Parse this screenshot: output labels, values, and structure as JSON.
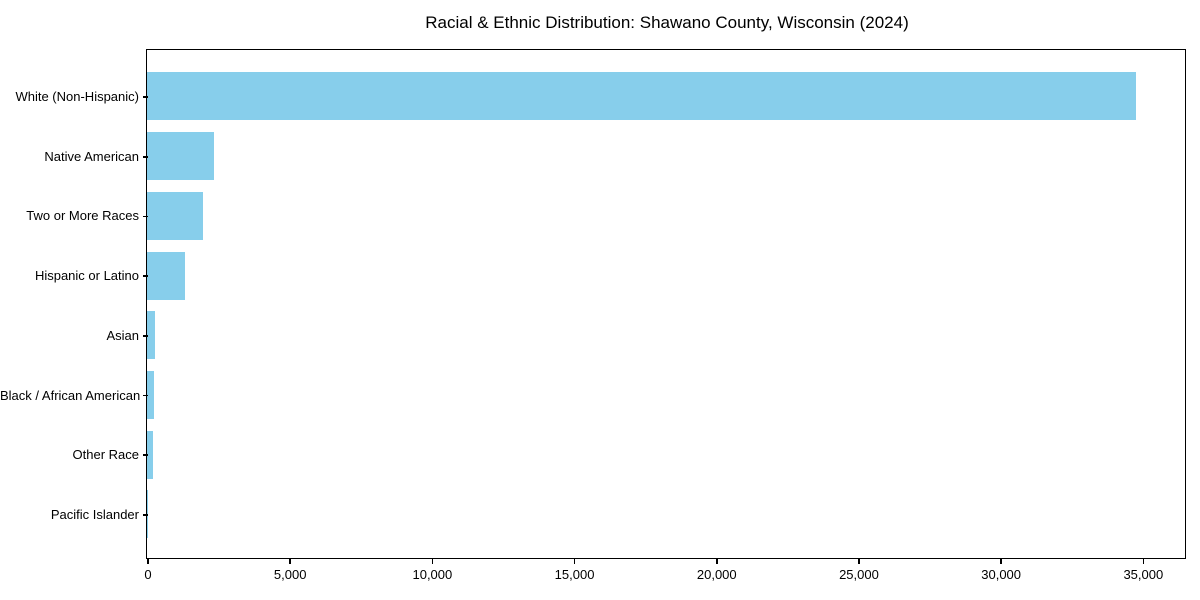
{
  "chart_data": {
    "type": "bar",
    "orientation": "horizontal",
    "title": "Racial & Ethnic Distribution: Shawano County, Wisconsin (2024)",
    "categories": [
      "White (Non-Hispanic)",
      "Native American",
      "Two or More Races",
      "Hispanic or Latino",
      "Asian",
      "Black / African American",
      "Other Race",
      "Pacific Islander"
    ],
    "values": [
      34750,
      2350,
      1950,
      1330,
      270,
      240,
      210,
      10
    ],
    "xlabel": "",
    "ylabel": "",
    "xlim": [
      0,
      36500
    ],
    "x_ticks": [
      0,
      5000,
      10000,
      15000,
      20000,
      25000,
      30000,
      35000
    ],
    "x_tick_labels": [
      "0",
      "5,000",
      "10,000",
      "15,000",
      "20,000",
      "25,000",
      "30,000",
      "35,000"
    ],
    "grid": false,
    "legend": null,
    "bar_color": "#87CEEB",
    "axis_color": "#000000",
    "text_color": "#000000",
    "background_color": "#FFFFFF"
  }
}
